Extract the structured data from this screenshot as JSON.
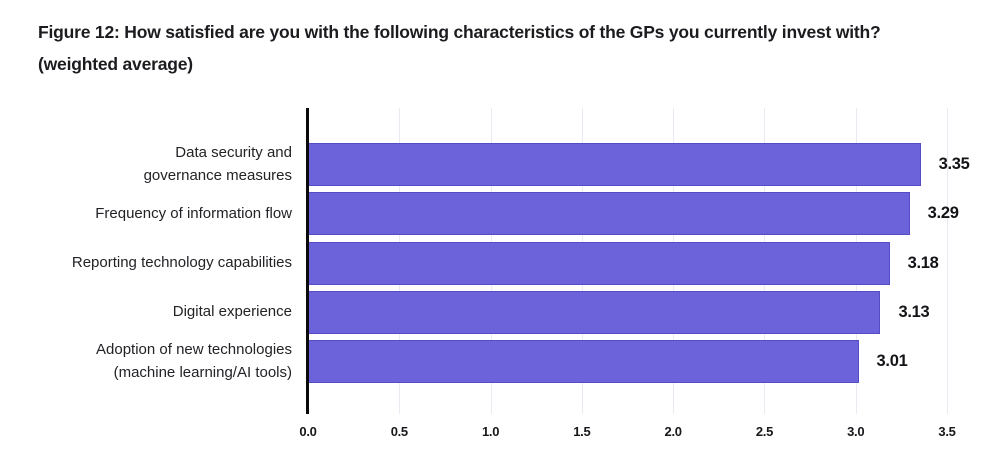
{
  "title": {
    "line1": "Figure 12: How satisfied are you with the following characteristics of the GPs you currently invest with?",
    "line2": "(weighted average)"
  },
  "chart_data": {
    "type": "bar",
    "orientation": "horizontal",
    "title": "Figure 12: How satisfied are you with the following characteristics of the GPs you currently invest with? (weighted average)",
    "categories": [
      "Data security and\ngovernance measures",
      "Frequency of information flow",
      "Reporting technology capabilities",
      "Digital experience",
      "Adoption of new technologies\n(machine learning/AI tools)"
    ],
    "values": [
      3.35,
      3.29,
      3.18,
      3.13,
      3.01
    ],
    "value_labels": [
      "3.35",
      "3.29",
      "3.18",
      "3.13",
      "3.01"
    ],
    "x_ticks": [
      0.0,
      0.5,
      1.0,
      1.5,
      2.0,
      2.5,
      3.0,
      3.5
    ],
    "x_tick_labels": [
      "0.0",
      "0.5",
      "1.0",
      "1.5",
      "2.0",
      "2.5",
      "3.0",
      "3.5"
    ],
    "xlim": [
      0,
      3.5
    ],
    "xlabel": "",
    "ylabel": "",
    "grid": "vertical-only",
    "legend": "none",
    "bar_color": "#6c63db",
    "gridline_color": "#ebe9f1",
    "axis_color": "#0a0a0c",
    "text_color": "#1c1c20"
  }
}
